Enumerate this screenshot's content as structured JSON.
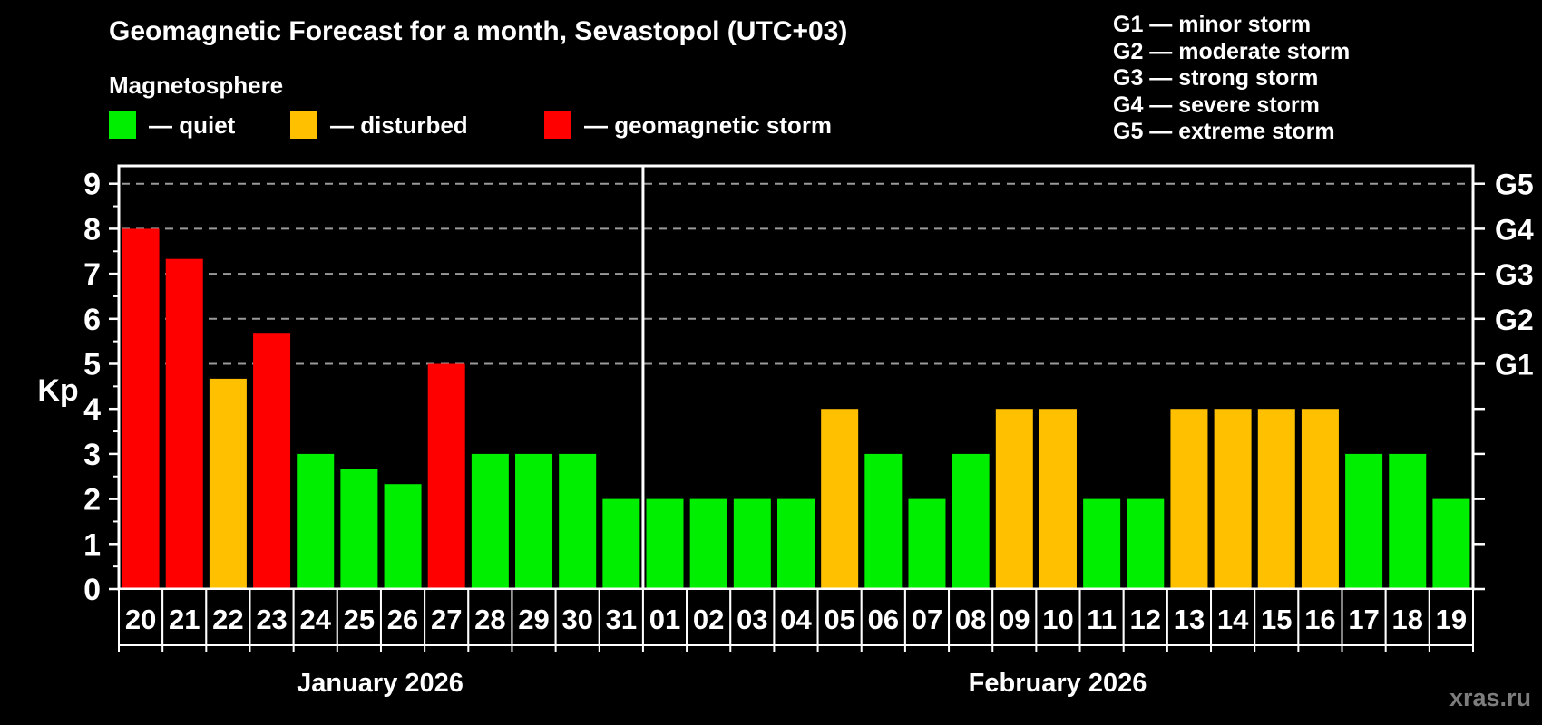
{
  "header": {
    "title": "Geomagnetic Forecast for a month, Sevastopol (UTC+03)",
    "subtitle": "Magnetosphere"
  },
  "legend": {
    "items": [
      {
        "status": "quiet",
        "label": "— quiet",
        "color": "#00ee00"
      },
      {
        "status": "disturbed",
        "label": "— disturbed",
        "color": "#ffc000"
      },
      {
        "status": "storm",
        "label": "— geomagnetic storm",
        "color": "#ff0000"
      }
    ]
  },
  "g_legend": {
    "lines": [
      "G1 — minor storm",
      "G2 — moderate storm",
      "G3 — strong storm",
      "G4 — severe storm",
      "G5 — extreme storm"
    ]
  },
  "watermark": "xras.ru",
  "chart_data": {
    "type": "bar",
    "ylabel": "Kp",
    "ylim": [
      0,
      9.4
    ],
    "y_ticks": [
      0,
      1,
      2,
      3,
      4,
      5,
      6,
      7,
      8,
      9
    ],
    "grid_kp_levels": [
      5,
      6,
      7,
      8,
      9
    ],
    "right_axis_labels": [
      {
        "kp": 5,
        "label": "G1"
      },
      {
        "kp": 6,
        "label": "G2"
      },
      {
        "kp": 7,
        "label": "G3"
      },
      {
        "kp": 8,
        "label": "G4"
      },
      {
        "kp": 9,
        "label": "G5"
      }
    ],
    "status_colors": {
      "quiet": "#00ee00",
      "disturbed": "#ffc000",
      "storm": "#ff0000"
    },
    "months": [
      {
        "label": "January 2026",
        "days": [
          {
            "date": "20",
            "kp": 8.0,
            "status": "storm"
          },
          {
            "date": "21",
            "kp": 7.33,
            "status": "storm"
          },
          {
            "date": "22",
            "kp": 4.67,
            "status": "disturbed"
          },
          {
            "date": "23",
            "kp": 5.67,
            "status": "storm"
          },
          {
            "date": "24",
            "kp": 3.0,
            "status": "quiet"
          },
          {
            "date": "25",
            "kp": 2.67,
            "status": "quiet"
          },
          {
            "date": "26",
            "kp": 2.33,
            "status": "quiet"
          },
          {
            "date": "27",
            "kp": 5.0,
            "status": "storm"
          },
          {
            "date": "28",
            "kp": 3.0,
            "status": "quiet"
          },
          {
            "date": "29",
            "kp": 3.0,
            "status": "quiet"
          },
          {
            "date": "30",
            "kp": 3.0,
            "status": "quiet"
          },
          {
            "date": "31",
            "kp": 2.0,
            "status": "quiet"
          }
        ]
      },
      {
        "label": "February 2026",
        "days": [
          {
            "date": "01",
            "kp": 2.0,
            "status": "quiet"
          },
          {
            "date": "02",
            "kp": 2.0,
            "status": "quiet"
          },
          {
            "date": "03",
            "kp": 2.0,
            "status": "quiet"
          },
          {
            "date": "04",
            "kp": 2.0,
            "status": "quiet"
          },
          {
            "date": "05",
            "kp": 4.0,
            "status": "disturbed"
          },
          {
            "date": "06",
            "kp": 3.0,
            "status": "quiet"
          },
          {
            "date": "07",
            "kp": 2.0,
            "status": "quiet"
          },
          {
            "date": "08",
            "kp": 3.0,
            "status": "quiet"
          },
          {
            "date": "09",
            "kp": 4.0,
            "status": "disturbed"
          },
          {
            "date": "10",
            "kp": 4.0,
            "status": "disturbed"
          },
          {
            "date": "11",
            "kp": 2.0,
            "status": "quiet"
          },
          {
            "date": "12",
            "kp": 2.0,
            "status": "quiet"
          },
          {
            "date": "13",
            "kp": 4.0,
            "status": "disturbed"
          },
          {
            "date": "14",
            "kp": 4.0,
            "status": "disturbed"
          },
          {
            "date": "15",
            "kp": 4.0,
            "status": "disturbed"
          },
          {
            "date": "16",
            "kp": 4.0,
            "status": "disturbed"
          },
          {
            "date": "17",
            "kp": 3.0,
            "status": "quiet"
          },
          {
            "date": "18",
            "kp": 3.0,
            "status": "quiet"
          },
          {
            "date": "19",
            "kp": 2.0,
            "status": "quiet"
          }
        ]
      }
    ]
  }
}
